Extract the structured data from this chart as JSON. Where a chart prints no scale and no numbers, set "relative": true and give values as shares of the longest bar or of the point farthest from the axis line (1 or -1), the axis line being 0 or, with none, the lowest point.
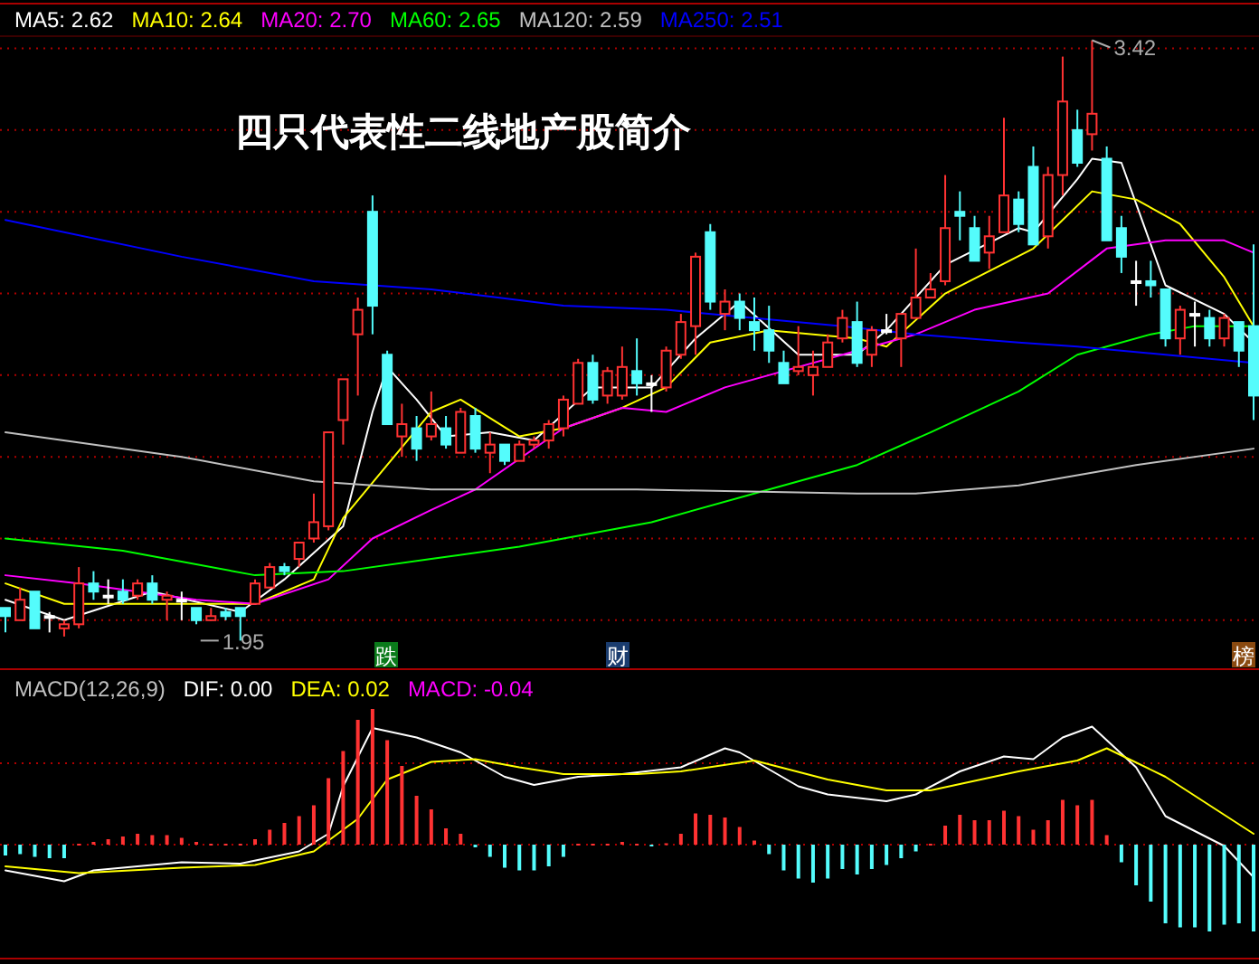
{
  "chart_data": [
    {
      "type": "candlestick",
      "title": "四只代表性二线地产股简介",
      "categories": [
        null,
        null,
        null,
        null,
        null,
        null,
        null,
        null,
        null,
        null,
        null,
        null,
        null,
        null,
        null,
        null,
        null,
        null,
        null,
        null,
        null,
        null,
        null,
        null,
        null,
        null,
        null,
        null,
        null,
        null,
        null,
        null,
        null,
        null,
        null,
        null,
        null,
        null,
        null,
        null,
        null,
        null,
        null,
        null,
        null,
        null,
        null,
        null,
        null,
        null,
        null,
        null,
        null,
        null,
        null,
        null,
        null,
        null,
        null,
        null,
        null,
        null,
        null,
        null,
        null,
        null,
        null,
        null,
        null,
        null,
        null,
        null,
        null,
        null,
        null,
        null,
        null,
        null,
        null,
        null,
        null,
        null,
        null,
        null,
        null,
        null
      ],
      "ohlc": [
        [
          2.03,
          2.03,
          1.97,
          2.01
        ],
        [
          2.0,
          2.08,
          2.0,
          2.05
        ],
        [
          2.07,
          2.07,
          1.98,
          1.98
        ],
        [
          2.01,
          2.02,
          1.97,
          2.01
        ],
        [
          1.98,
          2.0,
          1.96,
          1.99
        ],
        [
          1.99,
          2.13,
          1.98,
          2.09
        ],
        [
          2.09,
          2.12,
          2.05,
          2.07
        ],
        [
          2.06,
          2.1,
          2.04,
          2.06
        ],
        [
          2.07,
          2.1,
          2.04,
          2.05
        ],
        [
          2.06,
          2.1,
          2.05,
          2.09
        ],
        [
          2.09,
          2.11,
          2.04,
          2.05
        ],
        [
          2.05,
          2.07,
          2.0,
          2.06
        ],
        [
          2.05,
          2.07,
          2.0,
          2.05
        ],
        [
          2.03,
          2.03,
          1.99,
          2.0
        ],
        [
          2.0,
          2.03,
          2.0,
          2.01
        ],
        [
          2.02,
          2.03,
          2.0,
          2.01
        ],
        [
          2.03,
          2.03,
          1.95,
          2.01
        ],
        [
          2.04,
          2.1,
          2.04,
          2.09
        ],
        [
          2.08,
          2.14,
          2.08,
          2.13
        ],
        [
          2.13,
          2.14,
          2.11,
          2.12
        ],
        [
          2.15,
          2.19,
          2.13,
          2.19
        ],
        [
          2.2,
          2.31,
          2.19,
          2.24
        ],
        [
          2.23,
          2.46,
          2.22,
          2.46
        ],
        [
          2.49,
          2.59,
          2.43,
          2.59
        ],
        [
          2.7,
          2.79,
          2.55,
          2.76
        ],
        [
          3.0,
          3.04,
          2.7,
          2.77
        ],
        [
          2.65,
          2.66,
          2.48,
          2.48
        ],
        [
          2.45,
          2.53,
          2.4,
          2.48
        ],
        [
          2.47,
          2.5,
          2.39,
          2.42
        ],
        [
          2.45,
          2.56,
          2.44,
          2.48
        ],
        [
          2.47,
          2.5,
          2.42,
          2.43
        ],
        [
          2.41,
          2.52,
          2.41,
          2.51
        ],
        [
          2.5,
          2.52,
          2.41,
          2.42
        ],
        [
          2.41,
          2.46,
          2.36,
          2.43
        ],
        [
          2.43,
          2.43,
          2.38,
          2.39
        ],
        [
          2.39,
          2.44,
          2.39,
          2.43
        ],
        [
          2.43,
          2.45,
          2.42,
          2.44
        ],
        [
          2.44,
          2.49,
          2.42,
          2.48
        ],
        [
          2.47,
          2.55,
          2.45,
          2.54
        ],
        [
          2.53,
          2.64,
          2.53,
          2.63
        ],
        [
          2.63,
          2.65,
          2.53,
          2.54
        ],
        [
          2.55,
          2.62,
          2.53,
          2.61
        ],
        [
          2.55,
          2.67,
          2.54,
          2.62
        ],
        [
          2.61,
          2.69,
          2.55,
          2.58
        ],
        [
          2.58,
          2.6,
          2.51,
          2.58
        ],
        [
          2.57,
          2.67,
          2.56,
          2.66
        ],
        [
          2.65,
          2.75,
          2.64,
          2.73
        ],
        [
          2.72,
          2.9,
          2.65,
          2.89
        ],
        [
          2.95,
          2.97,
          2.76,
          2.78
        ],
        [
          2.75,
          2.81,
          2.71,
          2.78
        ],
        [
          2.78,
          2.8,
          2.71,
          2.74
        ],
        [
          2.73,
          2.79,
          2.66,
          2.71
        ],
        [
          2.71,
          2.77,
          2.63,
          2.66
        ],
        [
          2.63,
          2.66,
          2.58,
          2.58
        ],
        [
          2.61,
          2.72,
          2.6,
          2.62
        ],
        [
          2.6,
          2.66,
          2.55,
          2.62
        ],
        [
          2.62,
          2.7,
          2.62,
          2.68
        ],
        [
          2.69,
          2.76,
          2.68,
          2.74
        ],
        [
          2.73,
          2.78,
          2.62,
          2.63
        ],
        [
          2.65,
          2.72,
          2.62,
          2.71
        ],
        [
          2.71,
          2.75,
          2.7,
          2.71
        ],
        [
          2.69,
          2.75,
          2.62,
          2.75
        ],
        [
          2.74,
          2.91,
          2.74,
          2.79
        ],
        [
          2.79,
          2.85,
          2.79,
          2.81
        ],
        [
          2.83,
          3.09,
          2.82,
          2.96
        ],
        [
          3.0,
          3.05,
          2.93,
          2.99
        ],
        [
          2.96,
          2.99,
          2.88,
          2.88
        ],
        [
          2.9,
          2.99,
          2.86,
          2.94
        ],
        [
          2.95,
          3.23,
          2.95,
          3.04
        ],
        [
          3.03,
          3.05,
          2.95,
          2.97
        ],
        [
          3.11,
          3.16,
          2.92,
          2.92
        ],
        [
          2.94,
          3.11,
          2.91,
          3.09
        ],
        [
          3.09,
          3.38,
          3.04,
          3.27
        ],
        [
          3.2,
          3.25,
          3.11,
          3.12
        ],
        [
          3.19,
          3.42,
          3.15,
          3.24
        ],
        [
          3.13,
          3.16,
          2.93,
          2.93
        ],
        [
          2.96,
          2.99,
          2.85,
          2.89
        ],
        [
          2.83,
          2.88,
          2.77,
          2.83
        ],
        [
          2.83,
          2.88,
          2.79,
          2.82
        ],
        [
          2.81,
          2.81,
          2.67,
          2.69
        ],
        [
          2.69,
          2.77,
          2.65,
          2.76
        ],
        [
          2.75,
          2.78,
          2.67,
          2.75
        ],
        [
          2.74,
          2.76,
          2.67,
          2.69
        ],
        [
          2.69,
          2.75,
          2.67,
          2.74
        ],
        [
          2.73,
          2.73,
          2.62,
          2.66
        ],
        [
          2.72,
          2.92,
          2.49,
          2.55
        ]
      ],
      "colors": [
        "#54fcfc",
        "#ff3232",
        "#54fcfc",
        "#ffffff",
        "#ff3232",
        "#ff3232",
        "#54fcfc",
        "#ffffff",
        "#54fcfc",
        "#ff3232",
        "#54fcfc",
        "#ff3232",
        "#ffffff",
        "#54fcfc",
        "#ff3232",
        "#54fcfc",
        "#54fcfc",
        "#ff3232",
        "#ff3232",
        "#54fcfc",
        "#ff3232",
        "#ff3232",
        "#ff3232",
        "#ff3232",
        "#ff3232",
        "#54fcfc",
        "#54fcfc",
        "#ff3232",
        "#54fcfc",
        "#ff3232",
        "#54fcfc",
        "#ff3232",
        "#54fcfc",
        "#ff3232",
        "#54fcfc",
        "#ff3232",
        "#ff3232",
        "#ff3232",
        "#ff3232",
        "#ff3232",
        "#54fcfc",
        "#ff3232",
        "#ff3232",
        "#54fcfc",
        "#ffffff",
        "#ff3232",
        "#ff3232",
        "#ff3232",
        "#54fcfc",
        "#ff3232",
        "#54fcfc",
        "#54fcfc",
        "#54fcfc",
        "#54fcfc",
        "#ff3232",
        "#ff3232",
        "#ff3232",
        "#ff3232",
        "#54fcfc",
        "#ff3232",
        "#ffffff",
        "#ff3232",
        "#ff3232",
        "#ff3232",
        "#ff3232",
        "#54fcfc",
        "#54fcfc",
        "#ff3232",
        "#ff3232",
        "#54fcfc",
        "#54fcfc",
        "#ff3232",
        "#ff3232",
        "#54fcfc",
        "#ff3232",
        "#54fcfc",
        "#54fcfc",
        "#ffffff",
        "#54fcfc",
        "#54fcfc",
        "#ff3232",
        "#ffffff",
        "#54fcfc",
        "#ff3232",
        "#54fcfc",
        "#54fcfc"
      ],
      "ylim": [
        1.88,
        3.43
      ],
      "yticks": [
        {
          "value": 2.0,
          "label": null
        },
        {
          "value": 2.2,
          "label": null
        },
        {
          "value": 2.4,
          "label": null
        },
        {
          "value": 2.6,
          "label": null
        },
        {
          "value": 2.8,
          "label": null
        },
        {
          "value": 3.0,
          "label": null
        },
        {
          "value": 3.2,
          "label": null
        },
        {
          "value": 3.4,
          "label": null
        }
      ],
      "grid": "y",
      "legend": "top left",
      "series": [
        {
          "name": "MA5: 2.62",
          "type": "line",
          "color": "#ffffff",
          "values": [
            2.05,
            null,
            null,
            null,
            2.0,
            null,
            null,
            null,
            null,
            null,
            2.07,
            null,
            null,
            null,
            null,
            null,
            2.02,
            null,
            null,
            2.1,
            null,
            null,
            null,
            2.23,
            null,
            2.51,
            2.62,
            null,
            2.54,
            null,
            2.45,
            null,
            null,
            2.46,
            null,
            null,
            2.44,
            null,
            null,
            null,
            2.57,
            null,
            null,
            null,
            2.57,
            null,
            null,
            2.69,
            null,
            null,
            2.78,
            null,
            null,
            null,
            2.65,
            null,
            null,
            null,
            2.65,
            null,
            2.71,
            null,
            null,
            null,
            2.87,
            null,
            null,
            null,
            null,
            2.96,
            2.95,
            null,
            null,
            3.08,
            3.13,
            null,
            3.12,
            null,
            null,
            2.82,
            null,
            null,
            null,
            2.75,
            null,
            2.68
          ]
        },
        {
          "name": "MA10: 2.64",
          "type": "line",
          "color": "#ffff00",
          "values": [
            2.09,
            null,
            null,
            null,
            2.04,
            null,
            null,
            null,
            null,
            null,
            null,
            null,
            2.04,
            null,
            null,
            null,
            null,
            2.04,
            null,
            null,
            null,
            2.1,
            null,
            2.25,
            null,
            null,
            2.38,
            null,
            null,
            2.51,
            null,
            2.54,
            null,
            null,
            null,
            2.45,
            null,
            null,
            2.47,
            null,
            null,
            null,
            2.52,
            null,
            null,
            2.57,
            null,
            null,
            2.68,
            null,
            null,
            null,
            2.71,
            null,
            null,
            null,
            null,
            null,
            2.69,
            null,
            2.67,
            null,
            null,
            null,
            2.8,
            null,
            null,
            null,
            null,
            null,
            2.91,
            null,
            null,
            null,
            3.05,
            null,
            null,
            3.03,
            null,
            null,
            2.97,
            null,
            null,
            2.84,
            null,
            2.72
          ]
        },
        {
          "name": "MA20: 2.70",
          "type": "line",
          "color": "#ff00ff",
          "values": [
            2.11,
            null,
            null,
            null,
            null,
            2.09,
            null,
            null,
            null,
            null,
            null,
            null,
            null,
            2.05,
            null,
            null,
            null,
            2.04,
            null,
            null,
            null,
            null,
            2.1,
            null,
            null,
            2.2,
            null,
            null,
            null,
            2.27,
            null,
            null,
            2.32,
            null,
            null,
            null,
            null,
            null,
            2.47,
            null,
            null,
            null,
            2.52,
            null,
            null,
            2.51,
            null,
            null,
            null,
            2.57,
            null,
            null,
            null,
            null,
            null,
            null,
            null,
            null,
            2.66,
            null,
            null,
            null,
            2.7,
            null,
            null,
            null,
            2.76,
            null,
            null,
            null,
            null,
            2.8,
            null,
            null,
            null,
            2.91,
            null,
            null,
            null,
            2.93,
            null,
            null,
            null,
            2.93,
            null,
            2.9
          ]
        },
        {
          "name": "MA60: 2.65",
          "type": "line",
          "color": "#00ff00",
          "values": [
            2.2,
            null,
            null,
            null,
            null,
            null,
            null,
            null,
            2.17,
            null,
            null,
            null,
            null,
            null,
            null,
            null,
            null,
            2.11,
            null,
            null,
            null,
            null,
            null,
            2.12,
            null,
            null,
            null,
            null,
            null,
            2.15,
            null,
            null,
            null,
            null,
            null,
            2.18,
            null,
            null,
            null,
            null,
            null,
            null,
            null,
            null,
            2.24,
            null,
            null,
            null,
            null,
            null,
            null,
            2.31,
            null,
            null,
            null,
            null,
            null,
            null,
            2.38,
            null,
            null,
            null,
            null,
            2.46,
            null,
            null,
            null,
            null,
            null,
            2.56,
            null,
            null,
            null,
            2.65,
            null,
            null,
            null,
            null,
            2.7,
            null,
            null,
            2.72,
            null,
            null,
            null,
            2.72
          ]
        },
        {
          "name": "MA120: 2.59",
          "type": "line",
          "color": "#c0c0c0",
          "values": [
            2.46,
            null,
            null,
            null,
            null,
            null,
            null,
            null,
            null,
            null,
            null,
            null,
            2.4,
            null,
            null,
            null,
            null,
            null,
            null,
            null,
            null,
            2.34,
            null,
            null,
            null,
            null,
            null,
            null,
            null,
            2.32,
            null,
            null,
            null,
            null,
            null,
            null,
            null,
            null,
            null,
            null,
            null,
            null,
            null,
            2.32,
            null,
            null,
            null,
            null,
            null,
            null,
            null,
            null,
            null,
            null,
            null,
            null,
            null,
            null,
            2.31,
            null,
            null,
            null,
            2.31,
            null,
            null,
            null,
            null,
            null,
            null,
            2.33,
            null,
            null,
            null,
            null,
            null,
            null,
            null,
            2.38,
            null,
            null,
            null,
            null,
            null,
            null,
            null,
            2.42
          ]
        },
        {
          "name": "MA250: 2.51",
          "type": "line",
          "color": "#0000ff",
          "values": [
            2.98,
            null,
            null,
            null,
            null,
            null,
            null,
            null,
            null,
            null,
            null,
            null,
            2.89,
            null,
            null,
            null,
            null,
            null,
            null,
            null,
            null,
            2.83,
            null,
            null,
            null,
            null,
            null,
            null,
            null,
            2.81,
            null,
            null,
            null,
            null,
            null,
            null,
            null,
            null,
            2.77,
            null,
            null,
            null,
            null,
            null,
            null,
            2.76,
            null,
            null,
            null,
            null,
            null,
            null,
            null,
            null,
            null,
            null,
            null,
            2.72,
            null,
            null,
            null,
            null,
            2.7,
            null,
            null,
            null,
            null,
            null,
            null,
            2.68,
            null,
            null,
            null,
            2.67,
            null,
            null,
            null,
            null,
            null,
            2.65,
            null,
            null,
            null,
            null,
            null,
            2.63
          ]
        }
      ],
      "annotations": [
        "3.42",
        "1.95",
        "跌",
        "财",
        "榜"
      ]
    },
    {
      "type": "bar",
      "title": "MACD(12,26,9)",
      "relative": true,
      "legend": "top left",
      "ref_lines": [
        {
          "axis": "y",
          "value": 0,
          "color": "#b00000",
          "line_style": "dotted"
        },
        {
          "axis": "y",
          "value": 0.6,
          "color": "#b00000",
          "line_style": "dotted"
        }
      ],
      "categories": [
        null,
        null,
        null,
        null,
        null,
        null,
        null,
        null,
        null,
        null,
        null,
        null,
        null,
        null,
        null,
        null,
        null,
        null,
        null,
        null,
        null,
        null,
        null,
        null,
        null,
        null,
        null,
        null,
        null,
        null,
        null,
        null,
        null,
        null,
        null,
        null,
        null,
        null,
        null,
        null,
        null,
        null,
        null,
        null,
        null,
        null,
        null,
        null,
        null,
        null,
        null,
        null,
        null,
        null,
        null,
        null,
        null,
        null,
        null,
        null,
        null,
        null,
        null,
        null,
        null,
        null,
        null,
        null,
        null,
        null,
        null,
        null,
        null,
        null,
        null,
        null,
        null,
        null,
        null,
        null,
        null,
        null,
        null,
        null,
        null,
        null
      ],
      "series": [
        {
          "name": "DIF: 0.00",
          "type": "line",
          "color": "#ffffff",
          "values": [
            -0.19,
            null,
            null,
            null,
            -0.27,
            null,
            -0.19,
            null,
            null,
            null,
            null,
            null,
            -0.13,
            null,
            null,
            null,
            -0.14,
            null,
            null,
            null,
            -0.05,
            null,
            0.08,
            0.43,
            null,
            0.86,
            null,
            null,
            0.79,
            null,
            null,
            0.68,
            null,
            null,
            0.5,
            null,
            0.44,
            null,
            null,
            0.5,
            null,
            null,
            0.52,
            null,
            null,
            null,
            0.57,
            null,
            null,
            0.71,
            0.68,
            null,
            null,
            null,
            0.43,
            null,
            0.37,
            null,
            null,
            null,
            0.32,
            null,
            0.37,
            null,
            null,
            0.54,
            null,
            null,
            0.65,
            null,
            0.63,
            null,
            0.79,
            null,
            0.87,
            null,
            null,
            0.57,
            null,
            0.21,
            null,
            null,
            null,
            -0.01,
            null,
            -0.24
          ]
        },
        {
          "name": "DEA: 0.02",
          "type": "line",
          "color": "#ffff00",
          "values": [
            -0.16,
            null,
            null,
            null,
            null,
            -0.21,
            null,
            null,
            null,
            null,
            null,
            null,
            -0.17,
            null,
            null,
            null,
            null,
            -0.15,
            null,
            null,
            null,
            -0.05,
            null,
            null,
            0.19,
            null,
            0.48,
            null,
            null,
            0.61,
            null,
            null,
            0.63,
            null,
            null,
            0.57,
            null,
            null,
            0.52,
            null,
            null,
            null,
            null,
            0.52,
            null,
            null,
            0.54,
            null,
            null,
            null,
            null,
            0.62,
            null,
            null,
            null,
            null,
            0.48,
            null,
            null,
            null,
            0.4,
            null,
            null,
            0.4,
            null,
            null,
            null,
            null,
            null,
            0.54,
            null,
            null,
            null,
            0.62,
            null,
            0.71,
            null,
            null,
            null,
            0.5,
            null,
            null,
            null,
            null,
            null,
            0.08
          ]
        },
        {
          "name": "MACD: -0.04",
          "type": "bar",
          "color": "#ff00ff",
          "values": [
            -0.08,
            -0.07,
            -0.09,
            -0.1,
            -0.1,
            0,
            0.02,
            0.04,
            0.06,
            0.08,
            0.07,
            0.07,
            0.05,
            0.02,
            0,
            0,
            0,
            0.04,
            0.11,
            0.16,
            0.21,
            0.29,
            0.49,
            0.69,
            0.92,
            1.0,
            0.77,
            0.58,
            0.36,
            0.26,
            0.12,
            0.08,
            -0.02,
            -0.09,
            -0.17,
            -0.19,
            -0.19,
            -0.16,
            -0.09,
            0,
            0,
            0,
            0.02,
            0,
            -0.01,
            0.01,
            0.08,
            0.23,
            0.22,
            0.2,
            0.13,
            0.03,
            -0.07,
            -0.19,
            -0.25,
            -0.28,
            -0.25,
            -0.18,
            -0.22,
            -0.18,
            -0.15,
            -0.1,
            -0.05,
            0,
            0.14,
            0.22,
            0.18,
            0.18,
            0.25,
            0.21,
            0.11,
            0.18,
            0.33,
            0.29,
            0.33,
            0.07,
            -0.13,
            -0.3,
            -0.42,
            -0.58,
            -0.61,
            -0.61,
            -0.64,
            -0.59,
            -0.58,
            -0.64
          ],
          "colors": [
            "#54fcfc",
            "#54fcfc",
            "#54fcfc",
            "#54fcfc",
            "#54fcfc",
            "#ff3232",
            "#ff3232",
            "#ff3232",
            "#ff3232",
            "#ff3232",
            "#ff3232",
            "#ff3232",
            "#ff3232",
            "#ff3232",
            "#ff3232",
            "#ff3232",
            "#ff3232",
            "#ff3232",
            "#ff3232",
            "#ff3232",
            "#ff3232",
            "#ff3232",
            "#ff3232",
            "#ff3232",
            "#ff3232",
            "#ff3232",
            "#ff3232",
            "#ff3232",
            "#ff3232",
            "#ff3232",
            "#ff3232",
            "#ff3232",
            "#54fcfc",
            "#54fcfc",
            "#54fcfc",
            "#54fcfc",
            "#54fcfc",
            "#54fcfc",
            "#54fcfc",
            "#ff3232",
            "#ff3232",
            "#ff3232",
            "#ff3232",
            "#ff3232",
            "#54fcfc",
            "#ff3232",
            "#ff3232",
            "#ff3232",
            "#ff3232",
            "#ff3232",
            "#ff3232",
            "#ff3232",
            "#54fcfc",
            "#54fcfc",
            "#54fcfc",
            "#54fcfc",
            "#54fcfc",
            "#54fcfc",
            "#54fcfc",
            "#54fcfc",
            "#54fcfc",
            "#54fcfc",
            "#54fcfc",
            "#ff3232",
            "#ff3232",
            "#ff3232",
            "#ff3232",
            "#ff3232",
            "#ff3232",
            "#ff3232",
            "#ff3232",
            "#ff3232",
            "#ff3232",
            "#ff3232",
            "#ff3232",
            "#ff3232",
            "#54fcfc",
            "#54fcfc",
            "#54fcfc",
            "#54fcfc",
            "#54fcfc",
            "#54fcfc",
            "#54fcfc",
            "#54fcfc",
            "#54fcfc",
            "#54fcfc"
          ]
        }
      ]
    }
  ]
}
